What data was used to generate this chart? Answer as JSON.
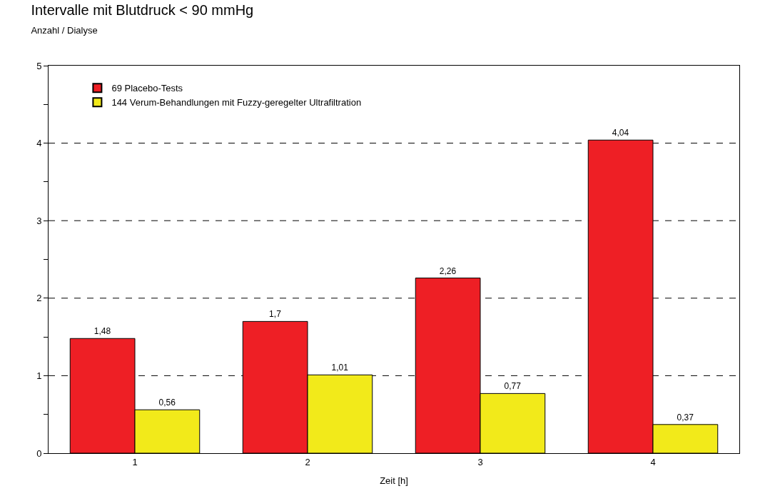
{
  "chart_data": {
    "type": "bar",
    "title": "Intervalle mit Blutdruck < 90 mmHg",
    "subtitle": "Anzahl / Dialyse",
    "xlabel": "Zeit [h]",
    "categories": [
      "1",
      "2",
      "3",
      "4"
    ],
    "series": [
      {
        "name": "69 Placebo-Tests",
        "color": "#ee1f25",
        "values": [
          1.48,
          1.7,
          2.26,
          4.04
        ],
        "value_labels": [
          "1,48",
          "1,7",
          "2,26",
          "4,04"
        ]
      },
      {
        "name": "144 Verum-Behandlungen mit Fuzzy-geregelter Ultrafiltration",
        "color": "#f2ea1a",
        "values": [
          0.56,
          1.01,
          0.77,
          0.37
        ],
        "value_labels": [
          "0,56",
          "1,01",
          "0,77",
          "0,37"
        ]
      }
    ],
    "ylim": [
      0,
      5
    ],
    "yticks": [
      0,
      {
        "value": 0.5,
        "label": null
      },
      1,
      {
        "value": 1.5,
        "label": null
      },
      2,
      {
        "value": 2.5,
        "label": null
      },
      3,
      {
        "value": 3.5,
        "label": null
      },
      4,
      {
        "value": 4.5,
        "label": null
      },
      5
    ],
    "grid": "y",
    "legend": "top left"
  }
}
